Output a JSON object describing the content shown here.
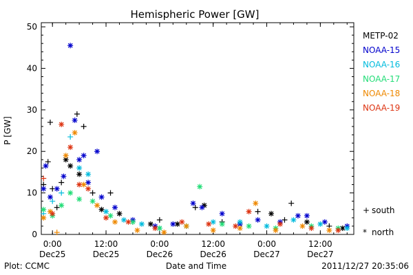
{
  "chart_data": {
    "type": "scatter",
    "title": "Hemispheric Power [GW]",
    "xlabel": "Date and Time",
    "ylabel": "P [GW]",
    "ylim": [
      0,
      51
    ],
    "xlim": [
      "2011-12-24T21:30",
      "2011-12-27T19:30"
    ],
    "y_ticks": [
      0,
      10,
      20,
      30,
      40,
      50
    ],
    "x_ticks": [
      {
        "time": "2011-12-25T00:00",
        "label_top": "0:00",
        "label_bottom": "Dec25"
      },
      {
        "time": "2011-12-25T12:00",
        "label_top": "12:00",
        "label_bottom": "Dec25"
      },
      {
        "time": "2011-12-26T00:00",
        "label_top": "0:00",
        "label_bottom": "Dec26"
      },
      {
        "time": "2011-12-26T12:00",
        "label_top": "12:00",
        "label_bottom": "Dec26"
      },
      {
        "time": "2011-12-27T00:00",
        "label_top": "0:00",
        "label_bottom": "Dec27"
      },
      {
        "time": "2011-12-27T12:00",
        "label_top": "12:00",
        "label_bottom": "Dec27"
      }
    ],
    "grid": false,
    "legend_position": "right",
    "series": [
      {
        "name": "METP-02",
        "color": "#000000",
        "points": [
          {
            "t": "2011-12-24T22:00",
            "y": 12,
            "m": "south"
          },
          {
            "t": "2011-12-24T23:00",
            "y": 17.5,
            "m": "south"
          },
          {
            "t": "2011-12-24T23:30",
            "y": 27,
            "m": "south"
          },
          {
            "t": "2011-12-25T00:00",
            "y": 11,
            "m": "south"
          },
          {
            "t": "2011-12-25T01:00",
            "y": 6.5,
            "m": "south"
          },
          {
            "t": "2011-12-25T02:00",
            "y": 12.5,
            "m": "south"
          },
          {
            "t": "2011-12-25T03:00",
            "y": 18,
            "m": "north"
          },
          {
            "t": "2011-12-25T04:00",
            "y": 16.5,
            "m": "north"
          },
          {
            "t": "2011-12-25T05:30",
            "y": 29,
            "m": "south"
          },
          {
            "t": "2011-12-25T06:00",
            "y": 14.5,
            "m": "north"
          },
          {
            "t": "2011-12-25T07:00",
            "y": 26,
            "m": "south"
          },
          {
            "t": "2011-12-25T09:00",
            "y": 10,
            "m": "south"
          },
          {
            "t": "2011-12-25T11:00",
            "y": 6,
            "m": "north"
          },
          {
            "t": "2011-12-25T13:00",
            "y": 10,
            "m": "south"
          },
          {
            "t": "2011-12-25T15:00",
            "y": 5,
            "m": "north"
          },
          {
            "t": "2011-12-25T18:00",
            "y": 3,
            "m": "south"
          },
          {
            "t": "2011-12-25T22:00",
            "y": 2.5,
            "m": "north"
          },
          {
            "t": "2011-12-26T00:00",
            "y": 3.5,
            "m": "south"
          },
          {
            "t": "2011-12-26T04:00",
            "y": 2.5,
            "m": "north"
          },
          {
            "t": "2011-12-26T08:00",
            "y": 6.5,
            "m": "south"
          },
          {
            "t": "2011-12-26T10:00",
            "y": 7,
            "m": "north"
          },
          {
            "t": "2011-12-26T14:00",
            "y": 3,
            "m": "south"
          },
          {
            "t": "2011-12-26T18:00",
            "y": 2.5,
            "m": "north"
          },
          {
            "t": "2011-12-26T22:00",
            "y": 5.5,
            "m": "south"
          },
          {
            "t": "2011-12-27T01:00",
            "y": 5,
            "m": "north"
          },
          {
            "t": "2011-12-27T04:00",
            "y": 3.5,
            "m": "south"
          },
          {
            "t": "2011-12-27T05:30",
            "y": 7.5,
            "m": "south"
          },
          {
            "t": "2011-12-27T09:00",
            "y": 3,
            "m": "north"
          },
          {
            "t": "2011-12-27T14:00",
            "y": 2,
            "m": "south"
          },
          {
            "t": "2011-12-27T17:00",
            "y": 1.5,
            "m": "north"
          }
        ]
      },
      {
        "name": "NOAA-15",
        "color": "#0000cc",
        "points": [
          {
            "t": "2011-12-24T22:00",
            "y": 11,
            "m": "north"
          },
          {
            "t": "2011-12-24T22:30",
            "y": 16.5,
            "m": "north"
          },
          {
            "t": "2011-12-24T23:30",
            "y": 9,
            "m": "north"
          },
          {
            "t": "2011-12-25T01:00",
            "y": 11,
            "m": "north"
          },
          {
            "t": "2011-12-25T02:30",
            "y": 14,
            "m": "north"
          },
          {
            "t": "2011-12-25T04:00",
            "y": 45.5,
            "m": "north"
          },
          {
            "t": "2011-12-25T05:00",
            "y": 27.5,
            "m": "north"
          },
          {
            "t": "2011-12-25T06:00",
            "y": 18,
            "m": "north"
          },
          {
            "t": "2011-12-25T07:00",
            "y": 19,
            "m": "north"
          },
          {
            "t": "2011-12-25T08:00",
            "y": 12.5,
            "m": "north"
          },
          {
            "t": "2011-12-25T10:00",
            "y": 20,
            "m": "north"
          },
          {
            "t": "2011-12-25T11:00",
            "y": 9,
            "m": "north"
          },
          {
            "t": "2011-12-25T14:00",
            "y": 6.5,
            "m": "north"
          },
          {
            "t": "2011-12-25T18:00",
            "y": 3.5,
            "m": "north"
          },
          {
            "t": "2011-12-25T23:00",
            "y": 2,
            "m": "north"
          },
          {
            "t": "2011-12-26T03:00",
            "y": 2.5,
            "m": "north"
          },
          {
            "t": "2011-12-26T07:30",
            "y": 7.5,
            "m": "north"
          },
          {
            "t": "2011-12-26T09:30",
            "y": 6.5,
            "m": "north"
          },
          {
            "t": "2011-12-26T14:00",
            "y": 5,
            "m": "north"
          },
          {
            "t": "2011-12-26T18:00",
            "y": 2.5,
            "m": "north"
          },
          {
            "t": "2011-12-26T22:00",
            "y": 3.5,
            "m": "north"
          },
          {
            "t": "2011-12-27T03:00",
            "y": 3,
            "m": "north"
          },
          {
            "t": "2011-12-27T07:00",
            "y": 4.5,
            "m": "north"
          },
          {
            "t": "2011-12-27T09:00",
            "y": 4.5,
            "m": "north"
          },
          {
            "t": "2011-12-27T13:00",
            "y": 3,
            "m": "north"
          },
          {
            "t": "2011-12-27T18:00",
            "y": 2,
            "m": "north"
          }
        ]
      },
      {
        "name": "NOAA-16",
        "color": "#00bbdd",
        "points": [
          {
            "t": "2011-12-24T22:00",
            "y": 5,
            "m": "south"
          },
          {
            "t": "2011-12-25T00:00",
            "y": 8,
            "m": "south"
          },
          {
            "t": "2011-12-25T02:00",
            "y": 10,
            "m": "south"
          },
          {
            "t": "2011-12-25T04:00",
            "y": 23.5,
            "m": "south"
          },
          {
            "t": "2011-12-25T06:00",
            "y": 16,
            "m": "north"
          },
          {
            "t": "2011-12-25T08:00",
            "y": 14.5,
            "m": "north"
          },
          {
            "t": "2011-12-25T12:00",
            "y": 5.5,
            "m": "north"
          },
          {
            "t": "2011-12-25T16:00",
            "y": 3.5,
            "m": "north"
          },
          {
            "t": "2011-12-25T20:00",
            "y": 2.5,
            "m": "north"
          },
          {
            "t": "2011-12-26T00:00",
            "y": 1.5,
            "m": "north"
          },
          {
            "t": "2011-12-26T06:00",
            "y": 2,
            "m": "north"
          },
          {
            "t": "2011-12-26T12:00",
            "y": 3,
            "m": "north"
          },
          {
            "t": "2011-12-26T18:00",
            "y": 3,
            "m": "north"
          },
          {
            "t": "2011-12-27T00:00",
            "y": 2,
            "m": "north"
          },
          {
            "t": "2011-12-27T06:00",
            "y": 3.5,
            "m": "north"
          },
          {
            "t": "2011-12-27T12:00",
            "y": 2.5,
            "m": "north"
          },
          {
            "t": "2011-12-27T18:00",
            "y": 1.5,
            "m": "north"
          }
        ]
      },
      {
        "name": "NOAA-17",
        "color": "#22dd77",
        "points": [
          {
            "t": "2011-12-24T22:00",
            "y": 6,
            "m": "north"
          },
          {
            "t": "2011-12-25T00:00",
            "y": 4.5,
            "m": "north"
          },
          {
            "t": "2011-12-25T02:00",
            "y": 7,
            "m": "north"
          },
          {
            "t": "2011-12-25T04:00",
            "y": 10,
            "m": "north"
          },
          {
            "t": "2011-12-25T06:00",
            "y": 8.5,
            "m": "north"
          },
          {
            "t": "2011-12-25T09:00",
            "y": 8,
            "m": "north"
          },
          {
            "t": "2011-12-25T13:00",
            "y": 4.5,
            "m": "north"
          },
          {
            "t": "2011-12-25T18:00",
            "y": 3,
            "m": "north"
          },
          {
            "t": "2011-12-26T00:00",
            "y": 1.5,
            "m": "north"
          },
          {
            "t": "2011-12-26T06:00",
            "y": 2,
            "m": "north"
          },
          {
            "t": "2011-12-26T09:00",
            "y": 11.5,
            "m": "north"
          },
          {
            "t": "2011-12-26T14:00",
            "y": 2.5,
            "m": "north"
          },
          {
            "t": "2011-12-26T20:00",
            "y": 2,
            "m": "north"
          },
          {
            "t": "2011-12-27T02:00",
            "y": 1.5,
            "m": "north"
          },
          {
            "t": "2011-12-27T10:00",
            "y": 2,
            "m": "north"
          },
          {
            "t": "2011-12-27T16:00",
            "y": 1.5,
            "m": "north"
          }
        ]
      },
      {
        "name": "NOAA-18",
        "color": "#ee8800",
        "points": [
          {
            "t": "2011-12-24T22:00",
            "y": 4,
            "m": "north"
          },
          {
            "t": "2011-12-24T23:30",
            "y": 5.5,
            "m": "north"
          },
          {
            "t": "2011-12-25T01:00",
            "y": 0.5,
            "m": "south"
          },
          {
            "t": "2011-12-25T03:00",
            "y": 19,
            "m": "north"
          },
          {
            "t": "2011-12-25T05:00",
            "y": 24.5,
            "m": "north"
          },
          {
            "t": "2011-12-25T07:00",
            "y": 12,
            "m": "north"
          },
          {
            "t": "2011-12-25T10:00",
            "y": 7,
            "m": "north"
          },
          {
            "t": "2011-12-25T14:00",
            "y": 3,
            "m": "north"
          },
          {
            "t": "2011-12-25T19:00",
            "y": 1,
            "m": "north"
          },
          {
            "t": "2011-12-26T01:00",
            "y": 0.5,
            "m": "north"
          },
          {
            "t": "2011-12-26T06:00",
            "y": 2,
            "m": "north"
          },
          {
            "t": "2011-12-26T12:00",
            "y": 1,
            "m": "north"
          },
          {
            "t": "2011-12-26T18:00",
            "y": 1.5,
            "m": "north"
          },
          {
            "t": "2011-12-26T21:30",
            "y": 7.5,
            "m": "north"
          },
          {
            "t": "2011-12-27T02:00",
            "y": 1,
            "m": "north"
          },
          {
            "t": "2011-12-27T08:00",
            "y": 2,
            "m": "north"
          },
          {
            "t": "2011-12-27T14:00",
            "y": 1,
            "m": "north"
          }
        ]
      },
      {
        "name": "NOAA-19",
        "color": "#dd3311",
        "points": [
          {
            "t": "2011-12-24T22:00",
            "y": 13.5,
            "m": "south"
          },
          {
            "t": "2011-12-25T00:00",
            "y": 5,
            "m": "north"
          },
          {
            "t": "2011-12-25T02:00",
            "y": 26.5,
            "m": "north"
          },
          {
            "t": "2011-12-25T04:00",
            "y": 21,
            "m": "north"
          },
          {
            "t": "2011-12-25T06:00",
            "y": 12,
            "m": "north"
          },
          {
            "t": "2011-12-25T08:00",
            "y": 11,
            "m": "north"
          },
          {
            "t": "2011-12-25T12:00",
            "y": 4,
            "m": "north"
          },
          {
            "t": "2011-12-25T17:00",
            "y": 3,
            "m": "north"
          },
          {
            "t": "2011-12-25T23:00",
            "y": 1.5,
            "m": "north"
          },
          {
            "t": "2011-12-26T05:00",
            "y": 3,
            "m": "north"
          },
          {
            "t": "2011-12-26T11:00",
            "y": 2.5,
            "m": "north"
          },
          {
            "t": "2011-12-26T17:00",
            "y": 2,
            "m": "north"
          },
          {
            "t": "2011-12-26T20:00",
            "y": 5.5,
            "m": "north"
          },
          {
            "t": "2011-12-27T03:00",
            "y": 2.5,
            "m": "north"
          },
          {
            "t": "2011-12-27T10:00",
            "y": 1.5,
            "m": "north"
          },
          {
            "t": "2011-12-27T16:00",
            "y": 1,
            "m": "north"
          }
        ]
      }
    ],
    "marker_legend": {
      "south": "south",
      "north": "north",
      "south_symbol": "+",
      "north_symbol": "*"
    }
  },
  "footer": {
    "source": "Plot: CCMC",
    "timestamp": "2011/12/27 20:35:06"
  }
}
